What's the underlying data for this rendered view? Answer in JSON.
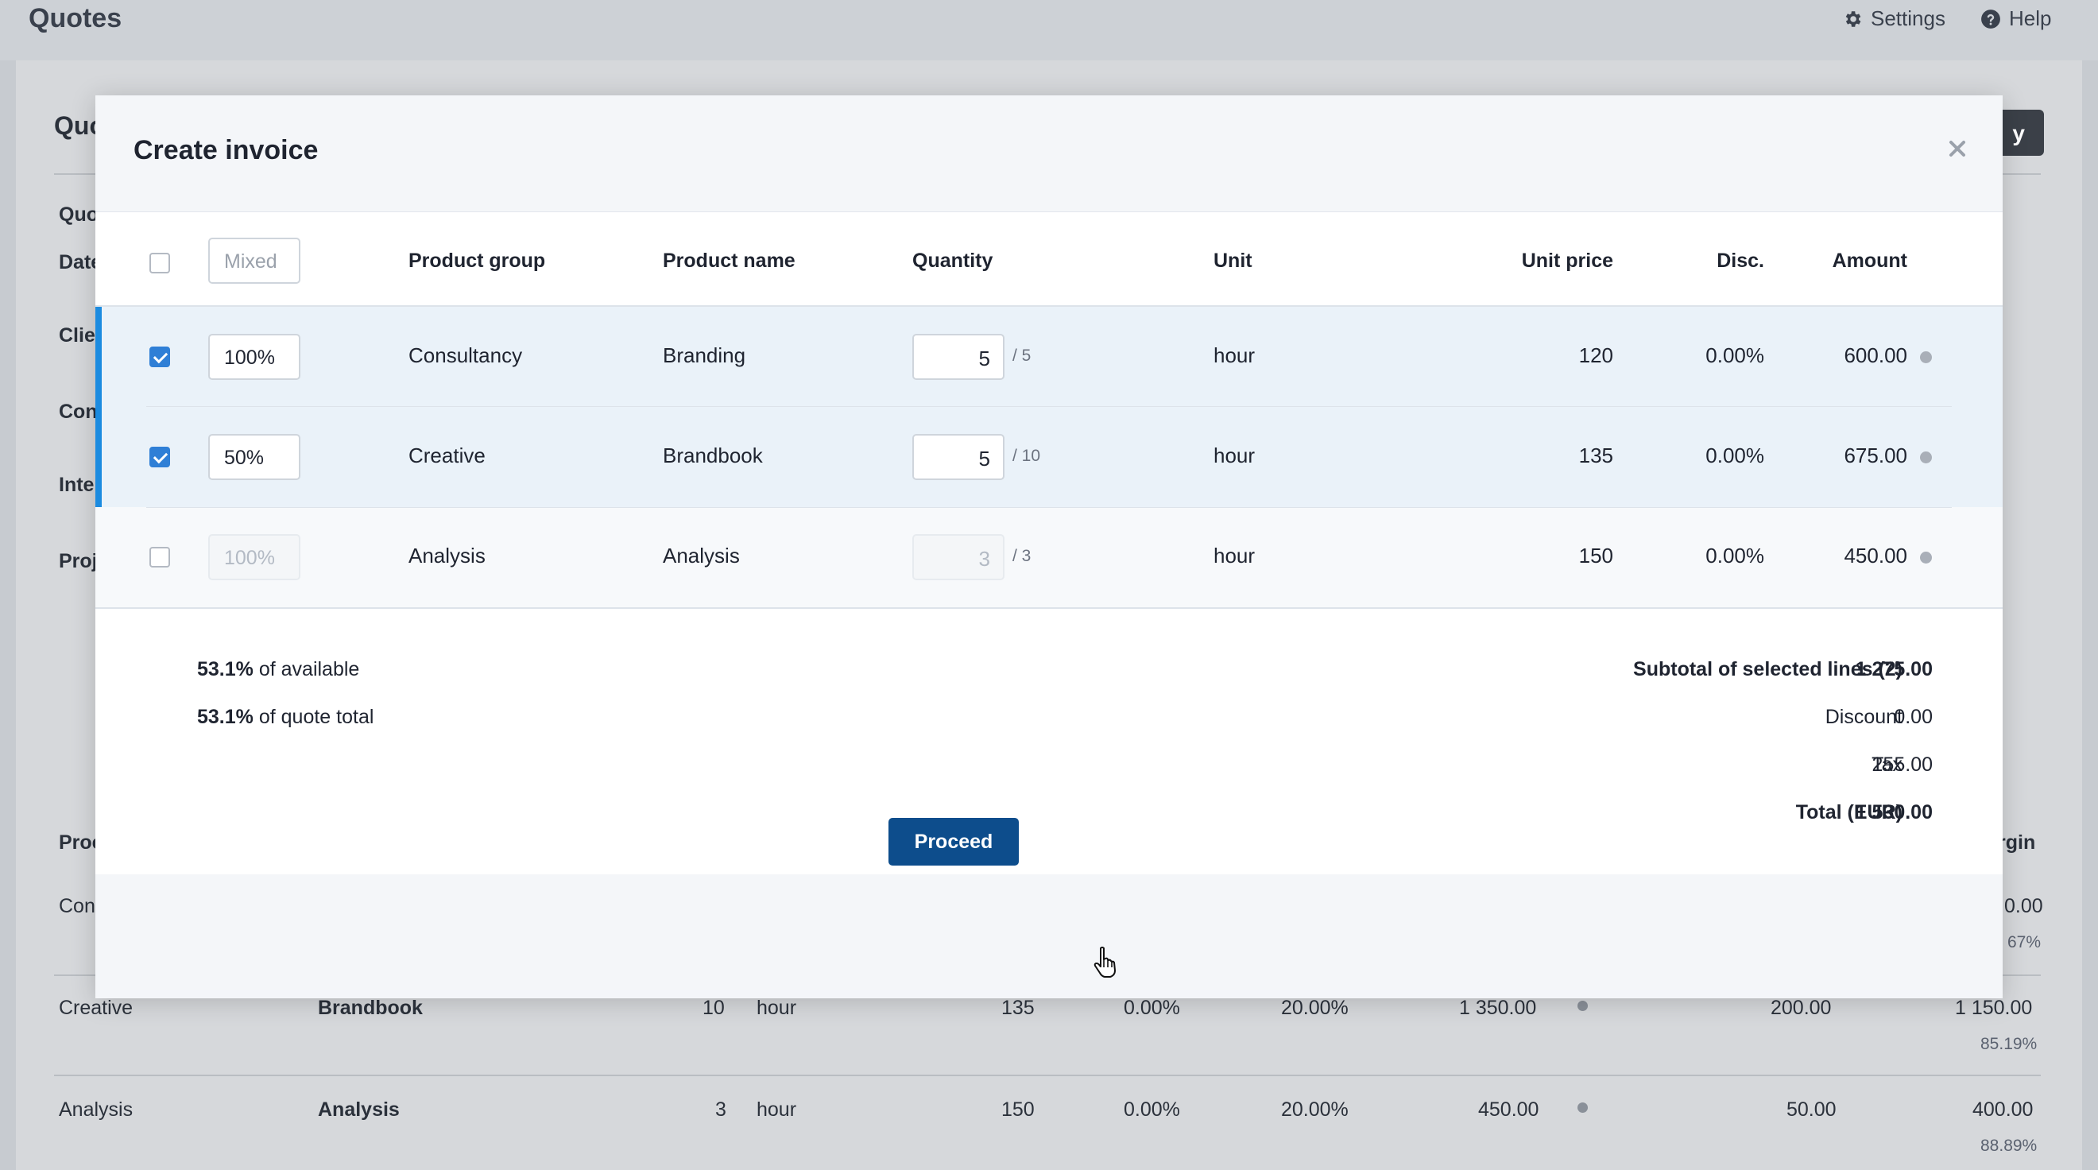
{
  "app": {
    "title": "Quotes",
    "nav": {
      "settings": "Settings",
      "help": "Help"
    }
  },
  "background": {
    "heading": "Quo",
    "button_label": "y",
    "field_labels": [
      "Quo",
      "Date",
      "Clie",
      "Con",
      "Inte",
      "Proj"
    ],
    "table_header_left": "Proc",
    "table_header_right": "rgin",
    "rows": [
      {
        "group": "Con",
        "value_right": "0.00",
        "pct": "67%"
      },
      {
        "group": "Creative",
        "name": "Brandbook",
        "qty": "10",
        "unit": "hour",
        "price": "135",
        "disc": "0.00%",
        "tax": "20.00%",
        "amount": "1 350.00",
        "cost": "200.00",
        "margin": "1 150.00",
        "margin_pct": "85.19%"
      },
      {
        "group": "Analysis",
        "name": "Analysis",
        "qty": "3",
        "unit": "hour",
        "price": "150",
        "disc": "0.00%",
        "tax": "20.00%",
        "amount": "450.00",
        "cost": "50.00",
        "margin": "400.00",
        "margin_pct": "88.89%"
      }
    ]
  },
  "modal": {
    "title": "Create invoice",
    "close_icon": "close-icon",
    "header": {
      "percent_placeholder": "Mixed",
      "columns": [
        "Product group",
        "Product name",
        "Quantity",
        "Unit",
        "Unit price",
        "Disc.",
        "Amount"
      ]
    },
    "lines": [
      {
        "selected": true,
        "percent": "100%",
        "group": "Consultancy",
        "name": "Branding",
        "qty": "5",
        "max": "/ 5",
        "unit": "hour",
        "price": "120",
        "disc": "0.00%",
        "amount": "600.00"
      },
      {
        "selected": true,
        "percent": "50%",
        "group": "Creative",
        "name": "Brandbook",
        "qty": "5",
        "max": "/ 10",
        "unit": "hour",
        "price": "135",
        "disc": "0.00%",
        "amount": "675.00"
      },
      {
        "selected": false,
        "percent": "100%",
        "group": "Analysis",
        "name": "Analysis",
        "qty": "3",
        "max": "/ 3",
        "unit": "hour",
        "price": "150",
        "disc": "0.00%",
        "amount": "450.00"
      }
    ],
    "summary": {
      "available_pct": "53.1%",
      "available_text": "of available",
      "quote_pct": "53.1%",
      "quote_text": "of quote total",
      "subtotal_label": "Subtotal of selected lines (2)",
      "subtotal": "1 275.00",
      "discount_label": "Discount",
      "discount": "0.00",
      "tax_label": "Tax",
      "tax": "255.00",
      "total_label": "Total (EUR)",
      "total": "1 530.00"
    },
    "proceed_label": "Proceed"
  }
}
